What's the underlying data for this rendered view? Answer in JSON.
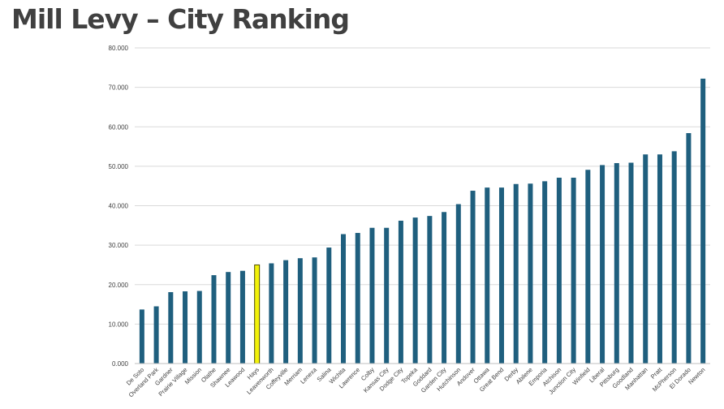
{
  "title": "Mill Levy – City Ranking",
  "chart_data": {
    "type": "bar",
    "title": "Mill Levy – City Ranking",
    "xlabel": "",
    "ylabel": "",
    "ylim": [
      0,
      80
    ],
    "yticks": [
      "0.000",
      "10.000",
      "20.000",
      "30.000",
      "40.000",
      "50.000",
      "60.000",
      "70.000",
      "80.000"
    ],
    "grid": true,
    "legend": "none",
    "bar_color": "#1f5f7e",
    "highlight_color": "#f2f20a",
    "highlight_border": "#4c4c00",
    "highlight_category": "Hays",
    "categories": [
      "De Soto",
      "Overland Park",
      "Gardner",
      "Prairie Village",
      "Mission",
      "Olathe",
      "Shawnee",
      "Leawood",
      "Hays",
      "Leavenworth",
      "Coffeyville",
      "Merriam",
      "Lenexa",
      "Salina",
      "Wichita",
      "Lawrence",
      "Colby",
      "Kansas City",
      "Dodge City",
      "Topeka",
      "Goddard",
      "Garden City",
      "Hutchinson",
      "Andover",
      "Ottawa",
      "Great Bend",
      "Derby",
      "Abilene",
      "Emporia",
      "Atchison",
      "Junction City",
      "Winfield",
      "Liberal",
      "Pittsburg",
      "Goodland",
      "Manhattan",
      "Pratt",
      "McPherson",
      "El Dorado",
      "Newton"
    ],
    "values": [
      13.7,
      14.5,
      18.1,
      18.3,
      18.4,
      22.4,
      23.2,
      23.5,
      25.0,
      25.4,
      26.2,
      26.7,
      26.9,
      29.4,
      32.8,
      33.1,
      34.4,
      34.4,
      36.2,
      37.0,
      37.4,
      38.4,
      40.4,
      43.8,
      44.6,
      44.6,
      45.5,
      45.6,
      46.2,
      47.1,
      47.1,
      49.1,
      50.3,
      50.8,
      50.9,
      53.0,
      53.0,
      53.8,
      58.4,
      72.2
    ]
  }
}
